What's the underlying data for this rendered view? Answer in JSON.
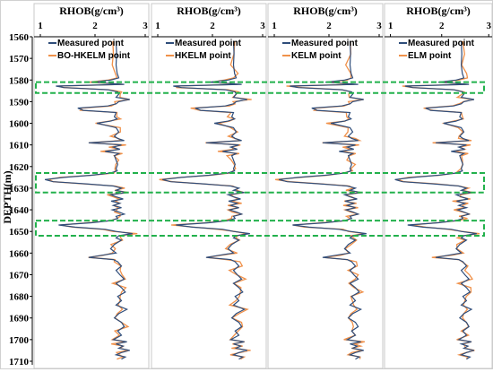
{
  "chart_data": {
    "type": "line",
    "ylabel": "DEPTH(m)",
    "ylim": [
      1560,
      1710
    ],
    "yticks": [
      "1560",
      "1570",
      "1580",
      "1590",
      "1600",
      "1610",
      "1620",
      "1630",
      "1640",
      "1650",
      "1660",
      "1670",
      "1680",
      "1690",
      "1700",
      "1710"
    ],
    "y_inverted": true,
    "xlim": [
      1,
      3
    ],
    "xticks": [
      "1",
      "2",
      "3"
    ],
    "measured_color": "#2f4d7a",
    "predicted_color": "#f0914a",
    "highlight_color": "#22b14c",
    "highlight_ranges": [
      [
        1581,
        1586
      ],
      [
        1623,
        1632
      ],
      [
        1645,
        1652
      ]
    ],
    "panels": [
      {
        "title": "RHOB(g/cm³)",
        "series": [
          {
            "name": "Measured point"
          },
          {
            "name": "BO-HKELM point"
          }
        ]
      },
      {
        "title": "RHOB(g/cm³)",
        "series": [
          {
            "name": "Measured point"
          },
          {
            "name": "HKELM point"
          }
        ]
      },
      {
        "title": "RHOB(g/cm³)",
        "series": [
          {
            "name": "Measured point"
          },
          {
            "name": "KELM point"
          }
        ]
      },
      {
        "title": "RHOB(g/cm³)",
        "series": [
          {
            "name": "Measured point"
          },
          {
            "name": "ELM point"
          }
        ]
      }
    ],
    "measured": {
      "depth": [
        1562,
        1568,
        1573,
        1577,
        1579,
        1580,
        1581,
        1582,
        1582.8,
        1583.5,
        1584.5,
        1585.5,
        1586.5,
        1588,
        1589,
        1590,
        1591,
        1592,
        1593,
        1594,
        1595,
        1597,
        1598,
        1599,
        1600,
        1602,
        1604,
        1606,
        1607,
        1608,
        1609,
        1610,
        1611,
        1612,
        1613,
        1614,
        1615,
        1617,
        1619,
        1621,
        1622,
        1623,
        1624,
        1625,
        1626,
        1627,
        1628,
        1629,
        1630,
        1631,
        1632,
        1633,
        1634,
        1635,
        1636,
        1637,
        1638,
        1639,
        1640,
        1641,
        1642,
        1643,
        1644,
        1645,
        1646,
        1647,
        1648,
        1649,
        1650,
        1651,
        1652,
        1653,
        1654,
        1656,
        1658,
        1660,
        1661,
        1662,
        1663,
        1664,
        1666,
        1668,
        1670,
        1672,
        1674,
        1676,
        1678,
        1680,
        1682,
        1684,
        1686,
        1688,
        1690,
        1692,
        1694,
        1696,
        1698,
        1700,
        1701,
        1702,
        1703,
        1704,
        1705,
        1706,
        1707,
        1708,
        1709
      ],
      "rhob": [
        2.45,
        2.46,
        2.45,
        2.47,
        2.5,
        2.35,
        2.0,
        2.6,
        1.35,
        1.5,
        2.3,
        2.48,
        2.5,
        2.45,
        2.7,
        2.5,
        2.45,
        2.3,
        1.75,
        1.85,
        2.45,
        2.42,
        2.47,
        2.35,
        2.1,
        2.45,
        2.5,
        2.42,
        2.48,
        2.6,
        1.95,
        2.55,
        2.4,
        2.52,
        2.25,
        2.5,
        2.42,
        2.45,
        2.48,
        2.45,
        2.47,
        2.35,
        2.0,
        1.5,
        1.15,
        1.3,
        1.9,
        2.4,
        2.55,
        2.45,
        2.65,
        2.35,
        2.45,
        2.58,
        2.36,
        2.52,
        2.4,
        2.55,
        2.38,
        2.5,
        2.6,
        2.45,
        2.48,
        2.35,
        2.0,
        1.4,
        1.7,
        2.25,
        2.45,
        2.75,
        2.5,
        2.45,
        2.55,
        2.42,
        2.35,
        2.45,
        2.2,
        1.95,
        2.4,
        2.48,
        2.55,
        2.45,
        2.52,
        2.6,
        2.45,
        2.55,
        2.62,
        2.48,
        2.55,
        2.45,
        2.65,
        2.5,
        2.42,
        2.55,
        2.6,
        2.48,
        2.55,
        2.4,
        2.65,
        2.45,
        2.58,
        2.5,
        2.7,
        2.55,
        2.45,
        2.62,
        2.55
      ]
    }
  }
}
